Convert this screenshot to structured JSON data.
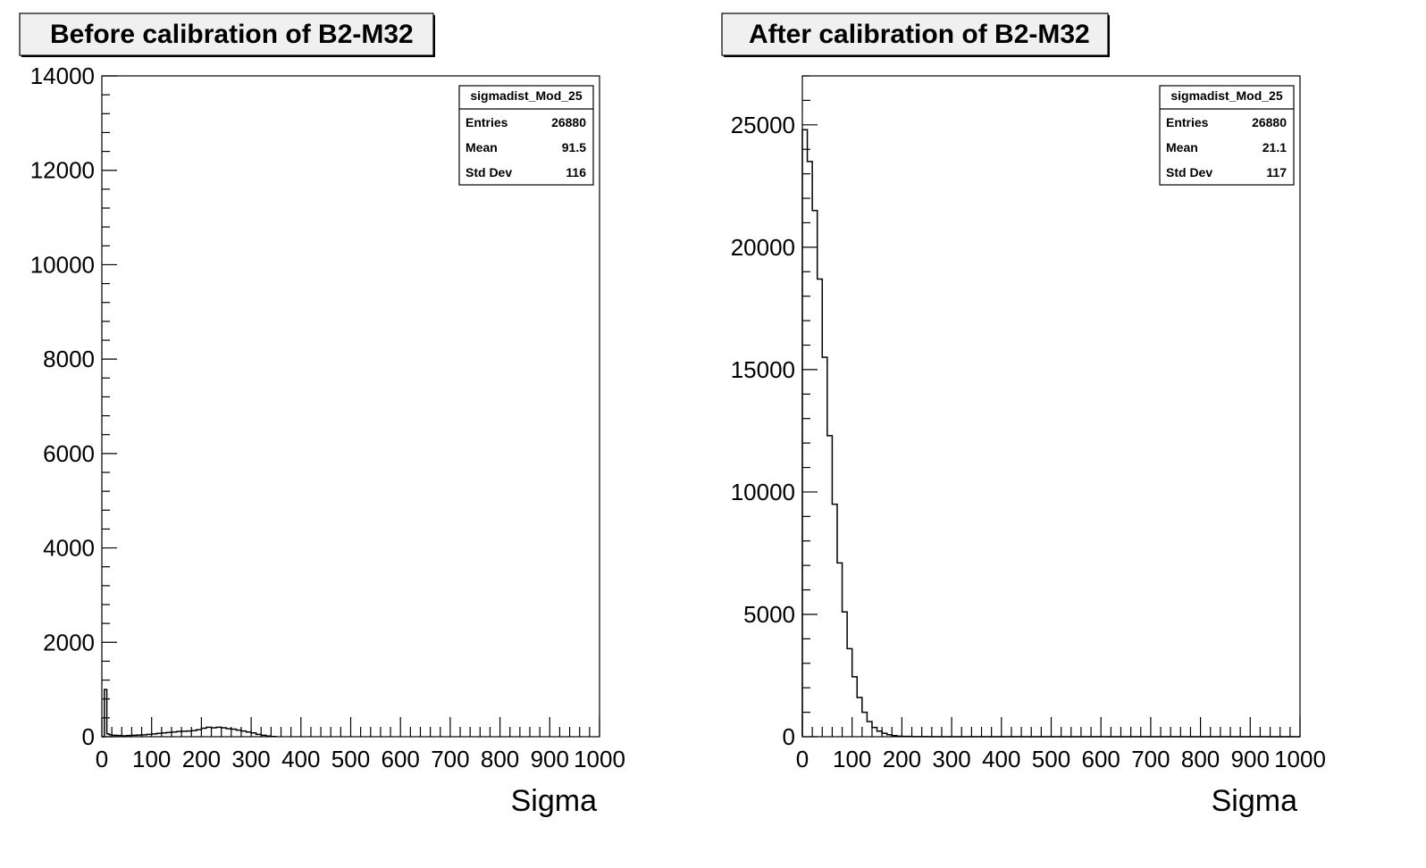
{
  "chart_data": [
    {
      "type": "line",
      "title": "Before calibration of B2-M32",
      "xlabel": "Sigma",
      "ylabel": "",
      "xlim": [
        0,
        1000
      ],
      "ylim": [
        0,
        14000
      ],
      "x_ticks": [
        "0",
        "100",
        "200",
        "300",
        "400",
        "500",
        "600",
        "700",
        "800",
        "900",
        "1000"
      ],
      "y_ticks": [
        "0",
        "2000",
        "4000",
        "6000",
        "8000",
        "10000",
        "12000",
        "14000"
      ],
      "stats": {
        "name": "sigmadist_Mod_25",
        "rows": [
          {
            "label": "Entries",
            "value": "26880"
          },
          {
            "label": "Mean",
            "value": "91.5"
          },
          {
            "label": "Std Dev",
            "value": "116"
          }
        ]
      },
      "series": [
        {
          "x": [
            0,
            5,
            10,
            15,
            20,
            30,
            40,
            50,
            60,
            70,
            80,
            90,
            100,
            110,
            120,
            130,
            140,
            150,
            160,
            170,
            180,
            190,
            200,
            210,
            220,
            230,
            240,
            250,
            260,
            270,
            280,
            290,
            300,
            310,
            320,
            330,
            340,
            350
          ],
          "y": [
            0,
            1000,
            60,
            40,
            30,
            25,
            20,
            25,
            30,
            35,
            40,
            50,
            60,
            70,
            80,
            90,
            100,
            110,
            115,
            120,
            130,
            150,
            180,
            200,
            190,
            200,
            190,
            170,
            160,
            140,
            120,
            100,
            80,
            50,
            30,
            15,
            5,
            0
          ]
        }
      ]
    },
    {
      "type": "line",
      "title": "After calibration of B2-M32",
      "xlabel": "Sigma",
      "ylabel": "",
      "xlim": [
        0,
        1000
      ],
      "ylim": [
        0,
        27000
      ],
      "x_ticks": [
        "0",
        "100",
        "200",
        "300",
        "400",
        "500",
        "600",
        "700",
        "800",
        "900",
        "1000"
      ],
      "y_ticks": [
        "0",
        "5000",
        "10000",
        "15000",
        "20000",
        "25000"
      ],
      "stats": {
        "name": "sigmadist_Mod_25",
        "rows": [
          {
            "label": "Entries",
            "value": "26880"
          },
          {
            "label": "Mean",
            "value": "21.1"
          },
          {
            "label": "Std Dev",
            "value": "117"
          }
        ]
      },
      "series": [
        {
          "x": [
            0,
            10,
            20,
            30,
            40,
            50,
            60,
            70,
            80,
            90,
            100,
            110,
            120,
            130,
            140,
            150,
            160,
            170,
            180,
            190,
            200,
            220,
            250,
            300,
            400,
            500,
            600,
            700,
            800,
            900,
            1000
          ],
          "y": [
            24800,
            23500,
            21500,
            18700,
            15500,
            12300,
            9500,
            7100,
            5100,
            3600,
            2450,
            1600,
            1000,
            620,
            380,
            230,
            140,
            80,
            45,
            25,
            14,
            6,
            2,
            0,
            0,
            0,
            0,
            0,
            0,
            0,
            0
          ]
        }
      ]
    }
  ]
}
